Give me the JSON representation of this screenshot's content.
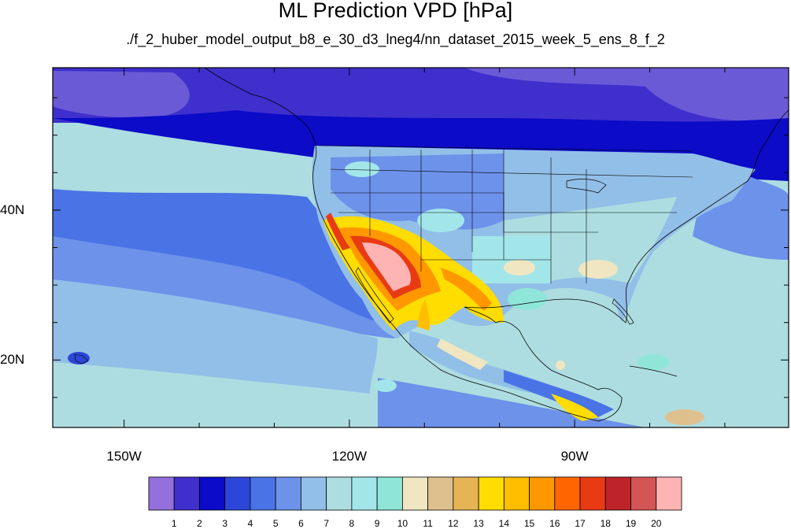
{
  "title": "ML Prediction VPD [hPa]",
  "subtitle": "./f_2_huber_model_output_b8_e_30_d3_lneg4/nn_dataset_2015_week_5_ens_8_f_2",
  "map": {
    "lon_ticks": [
      {
        "label": "150W",
        "lon": -150
      },
      {
        "label": "120W",
        "lon": -120
      },
      {
        "label": "90W",
        "lon": -90
      }
    ],
    "lat_ticks": [
      {
        "label": "40N",
        "lat": 40
      },
      {
        "label": "20N",
        "lat": 20
      }
    ],
    "lon_range": [
      -159.5,
      -61.5
    ],
    "lat_range": [
      11,
      59
    ]
  },
  "colorbar": {
    "labels": [
      "1",
      "2",
      "3",
      "4",
      "5",
      "6",
      "7",
      "8",
      "9",
      "10",
      "11",
      "12",
      "13",
      "14",
      "15",
      "16",
      "17",
      "18",
      "19",
      "20"
    ],
    "colors": [
      "#9370db",
      "#3f2fcc",
      "#0b0bc8",
      "#2c47d8",
      "#4a73e6",
      "#6d92ea",
      "#92bfe8",
      "#addde0",
      "#a3e6ea",
      "#8fe6d8",
      "#f0e6c2",
      "#dec08f",
      "#e6b455",
      "#ffdd00",
      "#ffbe00",
      "#ff9800",
      "#ff6600",
      "#e83b14",
      "#be2329",
      "#d45555",
      "#ffb4b4"
    ]
  }
}
